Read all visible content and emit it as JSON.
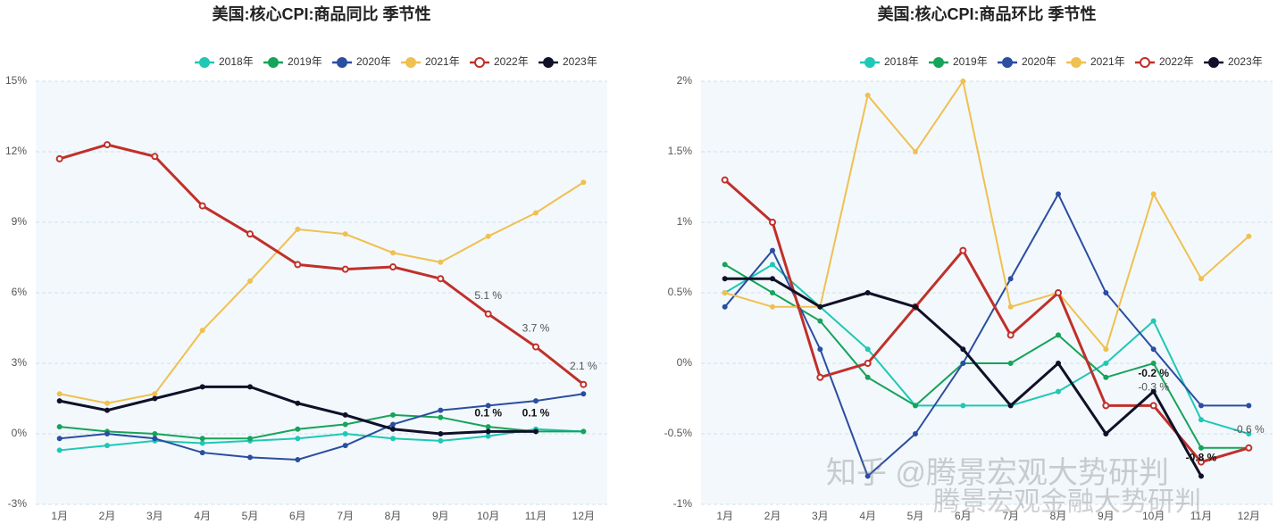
{
  "chart_data": [
    {
      "type": "line",
      "title": "美国:核心CPI:商品同比 季节性",
      "categories": [
        "1月",
        "2月",
        "3月",
        "4月",
        "5月",
        "6月",
        "7月",
        "8月",
        "9月",
        "10月",
        "11月",
        "12月"
      ],
      "ylim": [
        -3,
        15
      ],
      "yticks": [
        {
          "value": -3,
          "label": "-3%"
        },
        {
          "value": 0,
          "label": "0%"
        },
        {
          "value": 3,
          "label": "3%"
        },
        {
          "value": 6,
          "label": "6%"
        },
        {
          "value": 9,
          "label": "9%"
        },
        {
          "value": 12,
          "label": "12%"
        },
        {
          "value": 15,
          "label": "15%"
        }
      ],
      "grid": true,
      "legend": "top",
      "series": [
        {
          "name": "2018年",
          "color": "#1ec8b4",
          "values": [
            -0.7,
            -0.5,
            -0.3,
            -0.4,
            -0.3,
            -0.2,
            0.0,
            -0.2,
            -0.3,
            -0.1,
            0.2,
            0.1
          ]
        },
        {
          "name": "2019年",
          "color": "#16a35a",
          "values": [
            0.3,
            0.1,
            0.0,
            -0.2,
            -0.2,
            0.2,
            0.4,
            0.8,
            0.7,
            0.3,
            0.1,
            0.1
          ]
        },
        {
          "name": "2020年",
          "color": "#2a4ea0",
          "values": [
            -0.2,
            0.0,
            -0.2,
            -0.8,
            -1.0,
            -1.1,
            -0.5,
            0.4,
            1.0,
            1.2,
            1.4,
            1.7
          ]
        },
        {
          "name": "2021年",
          "color": "#f0c050",
          "values": [
            1.7,
            1.3,
            1.7,
            4.4,
            6.5,
            8.7,
            8.5,
            7.7,
            7.3,
            8.4,
            9.4,
            10.7
          ]
        },
        {
          "name": "2022年",
          "color": "#c0302a",
          "marker": "hollow",
          "values": [
            11.7,
            12.3,
            11.8,
            9.7,
            8.5,
            7.2,
            7.0,
            7.1,
            6.6,
            5.1,
            3.7,
            2.1
          ],
          "value_labels": [
            null,
            null,
            null,
            null,
            null,
            null,
            null,
            null,
            null,
            "5.1 %",
            "3.7 %",
            "2.1 %"
          ]
        },
        {
          "name": "2023年",
          "color": "#101028",
          "label_style": "bold",
          "values": [
            1.4,
            1.0,
            1.5,
            2.0,
            2.0,
            1.3,
            0.8,
            0.2,
            0.0,
            0.1,
            0.1,
            null
          ],
          "value_labels": [
            null,
            null,
            null,
            null,
            null,
            null,
            null,
            null,
            null,
            "0.1 %",
            "0.1 %",
            null
          ]
        }
      ]
    },
    {
      "type": "line",
      "title": "美国:核心CPI:商品环比 季节性",
      "categories": [
        "1月",
        "2月",
        "3月",
        "4月",
        "5月",
        "6月",
        "7月",
        "8月",
        "9月",
        "10月",
        "11月",
        "12月"
      ],
      "ylim": [
        -1,
        2
      ],
      "yticks": [
        {
          "value": -1,
          "label": "-1%"
        },
        {
          "value": -0.5,
          "label": "-0.5%"
        },
        {
          "value": 0,
          "label": "0%"
        },
        {
          "value": 0.5,
          "label": "0.5%"
        },
        {
          "value": 1,
          "label": "1%"
        },
        {
          "value": 1.5,
          "label": "1.5%"
        },
        {
          "value": 2,
          "label": "2%"
        }
      ],
      "grid": true,
      "legend": "top",
      "series": [
        {
          "name": "2018年",
          "color": "#1ec8b4",
          "values": [
            0.5,
            0.7,
            0.4,
            0.1,
            -0.3,
            -0.3,
            -0.3,
            -0.2,
            0.0,
            0.3,
            -0.4,
            -0.5
          ]
        },
        {
          "name": "2019年",
          "color": "#16a35a",
          "values": [
            0.7,
            0.5,
            0.3,
            -0.1,
            -0.3,
            0.0,
            0.0,
            0.2,
            -0.1,
            0.0,
            -0.6,
            -0.6
          ]
        },
        {
          "name": "2020年",
          "color": "#2a4ea0",
          "values": [
            0.4,
            0.8,
            0.1,
            -0.8,
            -0.5,
            0.0,
            0.6,
            1.2,
            0.5,
            0.1,
            -0.3,
            -0.3
          ]
        },
        {
          "name": "2021年",
          "color": "#f0c050",
          "values": [
            0.5,
            0.4,
            0.4,
            1.9,
            1.5,
            2.0,
            0.4,
            0.5,
            0.1,
            1.2,
            0.6,
            0.9
          ]
        },
        {
          "name": "2022年",
          "color": "#c0302a",
          "marker": "hollow",
          "values": [
            1.3,
            1.0,
            -0.1,
            0.0,
            0.4,
            0.8,
            0.2,
            0.5,
            -0.3,
            -0.3,
            -0.7,
            -0.6
          ],
          "value_labels": [
            null,
            null,
            null,
            null,
            null,
            null,
            null,
            null,
            null,
            "-0.3 %",
            null,
            "-0.6 %"
          ]
        },
        {
          "name": "2023年",
          "color": "#101028",
          "label_style": "bold",
          "values": [
            0.6,
            0.6,
            0.4,
            0.5,
            0.4,
            0.1,
            -0.3,
            0.0,
            -0.5,
            -0.2,
            -0.8,
            null
          ],
          "value_labels": [
            null,
            null,
            null,
            null,
            null,
            null,
            null,
            null,
            null,
            "-0.2 %",
            "-0.8 %",
            null
          ]
        }
      ]
    }
  ],
  "watermark": [
    "知乎 @腾景宏观大势研判",
    "腾景宏观金融大势研判"
  ]
}
